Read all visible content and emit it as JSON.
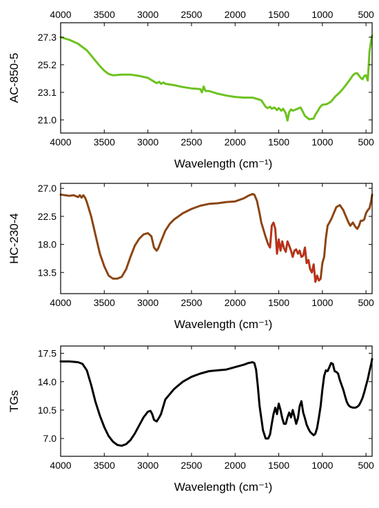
{
  "chart_data": [
    {
      "type": "line",
      "title": "",
      "xlabel": "Wavelength (cm⁻¹)",
      "ylabel": "AC-850-5",
      "xlim": [
        4000,
        430
      ],
      "x_reversed": true,
      "ylim": [
        20.0,
        28.4
      ],
      "xticks": [
        4000,
        3500,
        3000,
        2500,
        2000,
        1500,
        1000,
        500
      ],
      "xtick_labels": [
        "4000",
        "3500",
        "3000",
        "2500",
        "2000",
        "1500",
        "1000",
        "500"
      ],
      "top_axis_labels": true,
      "yticks": [
        21.0,
        23.1,
        25.2,
        27.3
      ],
      "ytick_labels": [
        "21.0",
        "23.1",
        "25.2",
        "27.3"
      ],
      "legend": "none",
      "grid": false,
      "series": [
        {
          "color": "#6dc21e",
          "x": [
            4000,
            3900,
            3800,
            3700,
            3650,
            3600,
            3550,
            3500,
            3450,
            3400,
            3300,
            3200,
            3100,
            3000,
            2950,
            2900,
            2870,
            2850,
            2820,
            2800,
            2700,
            2600,
            2500,
            2400,
            2380,
            2360,
            2340,
            2300,
            2200,
            2100,
            2000,
            1900,
            1800,
            1750,
            1700,
            1650,
            1630,
            1600,
            1580,
            1550,
            1520,
            1500,
            1470,
            1450,
            1420,
            1400,
            1380,
            1360,
            1340,
            1300,
            1250,
            1230,
            1200,
            1150,
            1100,
            1080,
            1050,
            1030,
            1000,
            950,
            900,
            850,
            800,
            760,
            720,
            680,
            650,
            620,
            600,
            560,
            540,
            520,
            500,
            480,
            460,
            440,
            430
          ],
          "y": [
            27.3,
            27.1,
            26.8,
            26.3,
            25.9,
            25.5,
            25.1,
            24.75,
            24.5,
            24.4,
            24.45,
            24.45,
            24.35,
            24.2,
            24.0,
            23.8,
            23.9,
            23.75,
            23.85,
            23.75,
            23.65,
            23.5,
            23.4,
            23.35,
            23.1,
            23.55,
            23.2,
            23.2,
            23.0,
            22.85,
            22.75,
            22.7,
            22.7,
            22.6,
            22.5,
            22.0,
            21.9,
            22.0,
            21.85,
            21.95,
            21.75,
            21.9,
            21.7,
            21.85,
            21.5,
            20.95,
            21.6,
            21.8,
            21.7,
            21.8,
            21.95,
            21.7,
            21.3,
            21.05,
            21.1,
            21.4,
            21.7,
            21.95,
            22.15,
            22.2,
            22.4,
            22.8,
            23.1,
            23.4,
            23.75,
            24.1,
            24.4,
            24.55,
            24.55,
            24.2,
            24.1,
            24.35,
            24.4,
            24.0,
            26.2,
            27.1,
            27.4
          ]
        }
      ]
    },
    {
      "type": "line",
      "title": "",
      "xlabel": "Wavelength (cm⁻¹)",
      "ylabel": "HC-230-4",
      "xlim": [
        4000,
        430
      ],
      "x_reversed": true,
      "ylim": [
        10.1,
        27.8
      ],
      "xticks": [
        4000,
        3500,
        3000,
        2500,
        2000,
        1500,
        1000,
        500
      ],
      "xtick_labels": [
        "4000",
        "3500",
        "3000",
        "2500",
        "2000",
        "1500",
        "1000",
        "500"
      ],
      "top_axis_labels": false,
      "yticks": [
        13.5,
        18.0,
        22.5,
        27.0
      ],
      "ytick_labels": [
        "13.5",
        "18.0",
        "22.5",
        "27.0"
      ],
      "legend": "none",
      "grid": false,
      "series": [
        {
          "color": "#8b4512",
          "highlight_color": "#e02020",
          "x": [
            4000,
            3900,
            3850,
            3800,
            3780,
            3760,
            3740,
            3720,
            3700,
            3650,
            3600,
            3550,
            3500,
            3450,
            3400,
            3350,
            3300,
            3250,
            3200,
            3150,
            3100,
            3050,
            3000,
            2960,
            2930,
            2900,
            2880,
            2850,
            2800,
            2750,
            2700,
            2600,
            2500,
            2400,
            2300,
            2200,
            2100,
            2000,
            1900,
            1850,
            1800,
            1780,
            1750,
            1720,
            1700,
            1650,
            1620,
            1600,
            1580,
            1560,
            1540,
            1520,
            1500,
            1480,
            1460,
            1440,
            1420,
            1400,
            1380,
            1360,
            1340,
            1320,
            1300,
            1280,
            1260,
            1240,
            1220,
            1200,
            1180,
            1160,
            1140,
            1120,
            1100,
            1080,
            1060,
            1040,
            1020,
            1000,
            980,
            960,
            940,
            920,
            900,
            870,
            840,
            800,
            760,
            730,
            700,
            680,
            650,
            620,
            600,
            580,
            560,
            540,
            520,
            500,
            480,
            460,
            440,
            430
          ],
          "y": [
            26.0,
            25.8,
            25.9,
            25.6,
            25.9,
            25.5,
            25.9,
            25.5,
            24.8,
            22.5,
            19.5,
            16.5,
            14.5,
            13.0,
            12.5,
            12.5,
            12.8,
            14.0,
            16.0,
            17.8,
            18.9,
            19.6,
            19.8,
            19.3,
            17.5,
            17.0,
            17.4,
            18.5,
            20.2,
            21.3,
            22.0,
            23.0,
            23.7,
            24.2,
            24.5,
            24.6,
            24.8,
            24.9,
            25.4,
            25.8,
            26.1,
            26.0,
            25.0,
            23.0,
            21.5,
            19.2,
            18.0,
            17.5,
            21.0,
            21.5,
            20.5,
            16.5,
            18.8,
            17.0,
            18.5,
            17.4,
            16.8,
            18.5,
            17.8,
            17.0,
            16.0,
            17.0,
            17.2,
            16.5,
            17.0,
            16.0,
            16.2,
            17.5,
            15.0,
            15.5,
            14.0,
            13.5,
            14.8,
            12.0,
            13.0,
            12.2,
            12.5,
            15.0,
            16.0,
            19.0,
            21.0,
            21.5,
            22.0,
            23.0,
            24.0,
            24.3,
            23.5,
            22.5,
            21.5,
            21.0,
            21.5,
            20.8,
            20.5,
            21.0,
            21.8,
            21.8,
            22.0,
            23.0,
            23.5,
            23.8,
            25.0,
            26.0
          ]
        }
      ]
    },
    {
      "type": "line",
      "title": "",
      "xlabel": "Wavelength (cm⁻¹)",
      "ylabel": "TGs",
      "xlim": [
        4000,
        430
      ],
      "x_reversed": true,
      "ylim": [
        4.8,
        18.4
      ],
      "xticks": [
        4000,
        3500,
        3000,
        2500,
        2000,
        1500,
        1000,
        500
      ],
      "xtick_labels": [
        "4000",
        "3500",
        "3000",
        "2500",
        "2000",
        "1500",
        "1000",
        "500"
      ],
      "top_axis_labels": false,
      "yticks": [
        7.0,
        10.5,
        14.0,
        17.5
      ],
      "ytick_labels": [
        "7.0",
        "10.5",
        "14.0",
        "17.5"
      ],
      "legend": "none",
      "grid": false,
      "series": [
        {
          "color": "#000000",
          "x": [
            4000,
            3900,
            3800,
            3750,
            3700,
            3650,
            3600,
            3550,
            3500,
            3450,
            3400,
            3350,
            3300,
            3250,
            3200,
            3150,
            3100,
            3050,
            3000,
            2970,
            2950,
            2930,
            2900,
            2870,
            2850,
            2800,
            2700,
            2600,
            2500,
            2400,
            2300,
            2200,
            2100,
            2000,
            1900,
            1850,
            1800,
            1780,
            1760,
            1740,
            1720,
            1700,
            1680,
            1650,
            1620,
            1600,
            1580,
            1560,
            1540,
            1520,
            1500,
            1480,
            1460,
            1440,
            1420,
            1400,
            1380,
            1360,
            1340,
            1320,
            1300,
            1280,
            1260,
            1240,
            1220,
            1200,
            1180,
            1160,
            1140,
            1120,
            1100,
            1080,
            1060,
            1040,
            1020,
            1000,
            980,
            960,
            940,
            920,
            900,
            880,
            860,
            840,
            820,
            800,
            780,
            760,
            740,
            720,
            700,
            680,
            650,
            620,
            600,
            580,
            560,
            540,
            520,
            500,
            480,
            460,
            440,
            430
          ],
          "y": [
            16.5,
            16.5,
            16.4,
            16.2,
            15.4,
            13.6,
            11.5,
            9.8,
            8.4,
            7.3,
            6.6,
            6.2,
            6.1,
            6.3,
            6.8,
            7.6,
            8.6,
            9.6,
            10.3,
            10.4,
            10.0,
            9.3,
            9.1,
            9.6,
            10.0,
            11.8,
            13.1,
            14.0,
            14.6,
            15.0,
            15.3,
            15.4,
            15.5,
            15.8,
            16.1,
            16.3,
            16.4,
            16.3,
            15.5,
            13.5,
            11.0,
            9.5,
            8.0,
            7.0,
            7.0,
            7.5,
            8.8,
            10.0,
            10.8,
            10.0,
            11.3,
            10.5,
            9.5,
            8.8,
            8.8,
            9.6,
            10.2,
            9.6,
            10.5,
            9.7,
            8.8,
            9.5,
            11.0,
            11.6,
            10.2,
            9.5,
            8.7,
            8.2,
            7.8,
            7.6,
            7.4,
            7.6,
            8.3,
            9.6,
            11.0,
            13.0,
            14.7,
            15.4,
            15.3,
            15.8,
            16.3,
            16.2,
            15.3,
            15.2,
            15.0,
            14.2,
            13.6,
            13.0,
            12.2,
            11.5,
            11.1,
            10.9,
            10.8,
            10.8,
            10.9,
            11.1,
            11.5,
            12.0,
            12.7,
            13.5,
            14.3,
            15.3,
            16.2,
            16.8
          ]
        }
      ]
    }
  ]
}
